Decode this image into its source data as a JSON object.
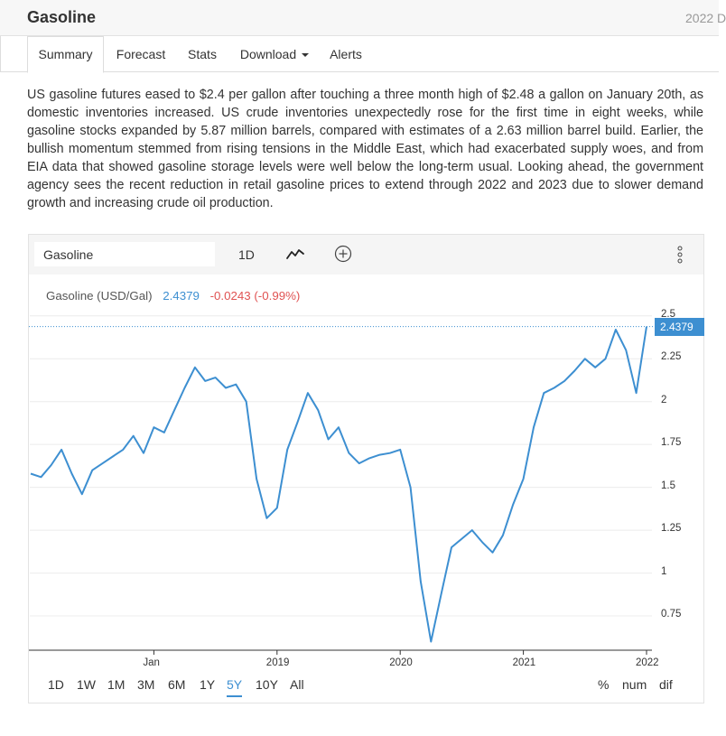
{
  "app": {
    "title": "Gasoline",
    "date_fragment": "2022 D"
  },
  "tabs": [
    {
      "label": "Summary"
    },
    {
      "label": "Forecast"
    },
    {
      "label": "Stats"
    },
    {
      "label": "Download"
    },
    {
      "label": "Alerts"
    }
  ],
  "summary_text": "US gasoline futures eased to $2.4 per gallon after touching a three month high of $2.48 a gallon on January 20th, as domestic inventories increased. US crude inventories unexpectedly rose for the first time in eight weeks, while gasoline stocks expanded by 5.87 million barrels, compared with estimates of a 2.63 million barrel build. Earlier, the bullish momentum stemmed from rising tensions in the Middle East, which had exacerbated supply woes, and from EIA data that showed gasoline storage levels were well below the long-term usual. Looking ahead, the government agency sees the recent reduction in retail gasoline prices to extend through 2022 and 2023 due to slower demand growth and increasing crude oil production.",
  "chart_toolbar": {
    "symbol": "Gasoline",
    "interval": "1D",
    "icons": [
      "line-chart-icon",
      "add-circle-icon",
      "more-vertical-icon"
    ]
  },
  "legend": {
    "name": "Gasoline (USD/Gal)",
    "price": "2.4379",
    "change": "-0.0243 (-0.99%)"
  },
  "price_tag": "2.4379",
  "ranges": [
    "1D",
    "1W",
    "1M",
    "3M",
    "6M",
    "1Y",
    "5Y",
    "10Y",
    "All"
  ],
  "active_range": "5Y",
  "modes": [
    "%",
    "num",
    "dif"
  ],
  "colors": {
    "line": "#3d8fd1",
    "negative": "#e05252",
    "accent": "#3d8fd1"
  },
  "chart_data": {
    "type": "line",
    "title": "",
    "xlabel": "",
    "ylabel": "",
    "series": [
      {
        "name": "Gasoline (USD/Gal)",
        "x": [
          "2017-01",
          "2017-02",
          "2017-03",
          "2017-04",
          "2017-05",
          "2017-06",
          "2017-07",
          "2017-08",
          "2017-09",
          "2017-10",
          "2017-11",
          "2017-12",
          "2018-01",
          "2018-02",
          "2018-03",
          "2018-04",
          "2018-05",
          "2018-06",
          "2018-07",
          "2018-08",
          "2018-09",
          "2018-10",
          "2018-11",
          "2018-12",
          "2019-01",
          "2019-02",
          "2019-03",
          "2019-04",
          "2019-05",
          "2019-06",
          "2019-07",
          "2019-08",
          "2019-09",
          "2019-10",
          "2019-11",
          "2019-12",
          "2020-01",
          "2020-02",
          "2020-03",
          "2020-04",
          "2020-05",
          "2020-06",
          "2020-07",
          "2020-08",
          "2020-09",
          "2020-10",
          "2020-11",
          "2020-12",
          "2021-01",
          "2021-02",
          "2021-03",
          "2021-04",
          "2021-05",
          "2021-06",
          "2021-07",
          "2021-08",
          "2021-09",
          "2021-10",
          "2021-11",
          "2021-12",
          "2022-01"
        ],
        "values": [
          1.58,
          1.56,
          1.63,
          1.72,
          1.58,
          1.46,
          1.6,
          1.64,
          1.68,
          1.72,
          1.8,
          1.7,
          1.85,
          1.82,
          1.95,
          2.08,
          2.2,
          2.12,
          2.14,
          2.08,
          2.1,
          2.0,
          1.55,
          1.32,
          1.38,
          1.72,
          1.88,
          2.05,
          1.95,
          1.78,
          1.85,
          1.7,
          1.64,
          1.67,
          1.69,
          1.7,
          1.72,
          1.5,
          0.95,
          0.6,
          0.88,
          1.15,
          1.2,
          1.25,
          1.18,
          1.12,
          1.22,
          1.4,
          1.55,
          1.85,
          2.05,
          2.08,
          2.12,
          2.18,
          2.25,
          2.2,
          2.25,
          2.42,
          2.3,
          2.05,
          2.4379
        ]
      }
    ],
    "x_ticks": [
      "Jan",
      "2019",
      "2020",
      "2021",
      "2022"
    ],
    "y_ticks": [
      "2.5",
      "2.25",
      "2",
      "1.75",
      "1.5",
      "1.25",
      "1",
      "0.75"
    ],
    "ylim": [
      0.55,
      2.52
    ],
    "last_value": 2.4379,
    "grid": true,
    "legend_position": "top-left"
  }
}
